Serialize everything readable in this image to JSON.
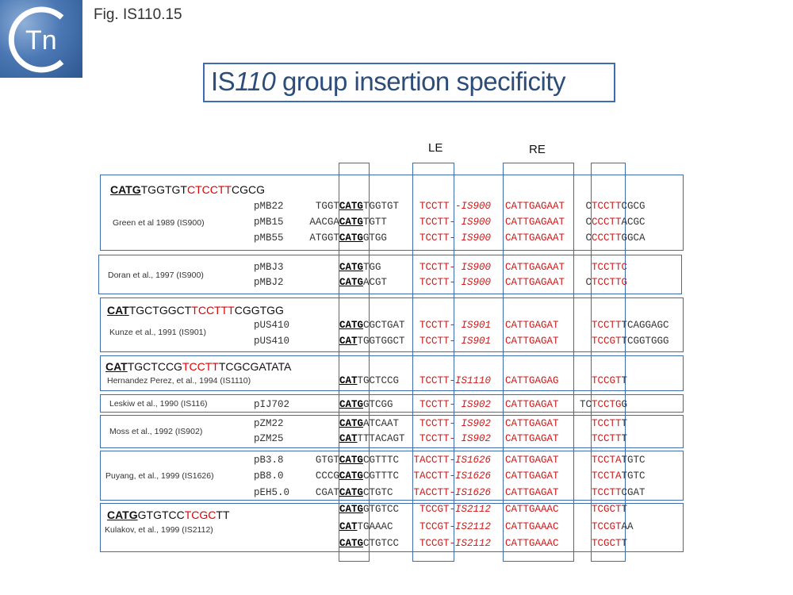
{
  "figure_label": "Fig. IS110.15",
  "logo": {
    "text": "Tn"
  },
  "title": {
    "prefix": "IS",
    "italic": "110",
    "suffix": " group insertion specificity"
  },
  "columns": {
    "le": "LE",
    "re": "RE"
  },
  "headers": {
    "g1": {
      "underlined": "CATG",
      "plain1": "TGGTGT",
      "red": "CTCCTT",
      "plain2": "CGCG"
    },
    "g3": {
      "underlined": "CAT",
      "plain1": "TGCTGGCT",
      "red": "TCCTTT",
      "plain2": "CGGTGG"
    },
    "g4": {
      "underlined": "CAT",
      "plain1": "TGCTCCG",
      "red": "TCCTT",
      "plain2": "TCGCGATATA"
    },
    "g8": {
      "underlined": "CATG",
      "plain1": "GTGTCC",
      "red": "TCGC",
      "plain2": "TT"
    }
  },
  "references": {
    "g1": "Green et al 1989 (IS900)",
    "g2": "Doran et al., 1997 (IS900)",
    "g3": "Kunze et al., 1991 (IS901)",
    "g4": "Hernandez Perez, et al., 1994 (IS1110)",
    "g5": "Leskiw et al., 1990 (IS116)",
    "g6": "Moss et al., 1992 (IS902)",
    "g7": "Puyang, et al., 1999 (IS1626)",
    "g8": "Kulakov, et al., 1999 (IS2112)"
  },
  "rows": [
    {
      "plasmid": "pMB22",
      "flank": "TGGT",
      "site": "CATG",
      "after": "TGGTGT",
      "le": "TCCTT",
      "sep": " -",
      "is": "IS900",
      "re": "CATTGAGAAT",
      "target_a": "C",
      "target_r": "TCCTT",
      "target_b": "CGCG"
    },
    {
      "plasmid": "pMB15",
      "flank": "AACGA",
      "site": "CATG",
      "after": "TGTT",
      "le": "TCCTT",
      "sep": "- ",
      "is": "IS900",
      "re": "CATTGAGAAT",
      "target_a": "C",
      "target_r": "CCCTT",
      "target_b": "ACGC"
    },
    {
      "plasmid": "pMB55",
      "flank": "ATGGT",
      "site": "CATG",
      "after": "GTGG",
      "le": "TCCTT",
      "sep": "- ",
      "is": "IS900",
      "re": "CATTGAGAAT",
      "target_a": "C",
      "target_r": "CCCTT",
      "target_b": "GGCA"
    },
    {
      "plasmid": "pMBJ3",
      "flank": "",
      "site": "CATG",
      "after": "TGG",
      "le": "TCCTT",
      "sep": "- ",
      "is": "IS900",
      "re": "CATTGAGAAT",
      "target_a": "",
      "target_r": "TCCTTC",
      "target_b": ""
    },
    {
      "plasmid": "pMBJ2",
      "flank": "",
      "site": "CATG",
      "after": "ACGT",
      "le": "TCCTT",
      "sep": "- ",
      "is": "IS900",
      "re": "CATTGAGAAT",
      "target_a": "C",
      "target_r": "TCCTTG",
      "target_b": ""
    },
    {
      "plasmid": "pUS410",
      "flank": "",
      "site": "CATG",
      "after": "CGCTGAT",
      "le": "TCCTT",
      "sep": "- ",
      "is": "IS901",
      "re": "CATTGAGAT",
      "target_a": "",
      "target_r": "TCCTT",
      "target_b": "TCAGGAGC"
    },
    {
      "plasmid": "pUS410",
      "flank": "",
      "site": "CAT",
      "after": "TGGTGGCT",
      "le": "TCCTT",
      "sep": "- ",
      "is": "IS901",
      "re": "CATTGAGAT",
      "target_a": "",
      "target_r": "TCCGT",
      "target_b": "TCGGTGGG"
    },
    {
      "plasmid": "",
      "flank": "",
      "site": "CAT",
      "after": "TGCTCCG",
      "le": "TCCTT",
      "sep": "-",
      "is": "IS1110",
      "re": "CATTGAGAG",
      "target_a": "",
      "target_r": "TCCGT",
      "target_b": "T"
    },
    {
      "plasmid": "pIJ702",
      "flank": "",
      "site": "CATG",
      "after": "GTCGG",
      "le": "TCCTT",
      "sep": "- ",
      "is": "IS902",
      "re": "CATTGAGAT",
      "target_a": "TC",
      "target_r": "TCCTG",
      "target_b": "G"
    },
    {
      "plasmid": "pZM22",
      "flank": "",
      "site": "CATG",
      "after": "ATCAAT",
      "le": "TCCTT",
      "sep": "- ",
      "is": "IS902",
      "re": "CATTGAGAT",
      "target_a": "",
      "target_r": "TCCTT",
      "target_b": "T"
    },
    {
      "plasmid": "pZM25",
      "flank": "",
      "site": "CAT",
      "after": "TTTACAGT",
      "le": "TCCTT",
      "sep": "- ",
      "is": "IS902",
      "re": "CATTGAGAT",
      "target_a": "",
      "target_r": "TCCTT",
      "target_b": "T"
    },
    {
      "plasmid": "pB3.8",
      "flank": "GTGT",
      "site": "CATG",
      "after": "CGTTTC",
      "le": "TACCTT",
      "sep": "-",
      "is": "IS1626",
      "re": "CATTGAGAT",
      "target_a": "",
      "target_r": "TCCTA",
      "target_b": "TGTC"
    },
    {
      "plasmid": "pB8.0",
      "flank": "CCCG",
      "site": "CATG",
      "after": "CGTTTC",
      "le": "TACCTT",
      "sep": "-",
      "is": "IS1626",
      "re": "CATTGAGAT",
      "target_a": "",
      "target_r": "TCCTA",
      "target_b": "TGTC"
    },
    {
      "plasmid": "pEH5.0",
      "flank": "CGAT",
      "site": "CATG",
      "after": "CTGTC",
      "le": "TACCTT",
      "sep": "-",
      "is": "IS1626",
      "re": "CATTGAGAT",
      "target_a": "",
      "target_r": "TCCTT",
      "target_b": "CGAT"
    },
    {
      "plasmid": "",
      "flank": "",
      "site": "CATG",
      "after": "GTGTCC",
      "le": "TCCGT",
      "sep": "-",
      "is": "IS2112",
      "re": "CATTGAAAC",
      "target_a": "",
      "target_r": "TCGCT",
      "target_b": "T"
    },
    {
      "plasmid": "",
      "flank": "",
      "site": "CAT",
      "after": "TGAAAC",
      "le": "TCCGT",
      "sep": "-",
      "is": "IS2112",
      "re": "CATTGAAAC",
      "target_a": "",
      "target_r": "TCCGT",
      "target_b": "AA"
    },
    {
      "plasmid": "",
      "flank": "",
      "site": "CATG",
      "after": "CTGTCC",
      "le": "TCCGT",
      "sep": "-",
      "is": "IS2112",
      "re": "CATTGAAAC",
      "target_a": "",
      "target_r": "TCGCT",
      "target_b": "T"
    }
  ]
}
